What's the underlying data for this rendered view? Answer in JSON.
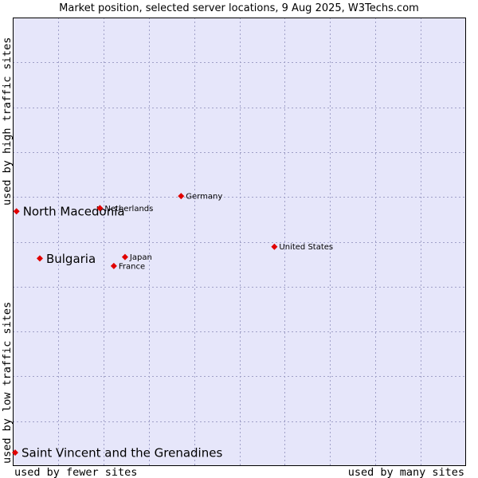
{
  "chart_data": {
    "type": "scatter",
    "title": "Market position, selected server locations, 9 Aug 2025, W3Techs.com",
    "xlabel_left": "used by fewer sites",
    "xlabel_right": "used by many sites",
    "ylabel_bottom": "used by low traffic sites",
    "ylabel_top": "used by high traffic sites",
    "xlim": [
      0,
      100
    ],
    "ylim": [
      0,
      100
    ],
    "grid": true,
    "colors": {
      "plot_bg": "#e6e6fa",
      "grid": "#a0a0c8",
      "point": "#e00000",
      "border": "#000000"
    },
    "points": [
      {
        "label": "North Macedonia",
        "x": 0.3,
        "y": 56.8,
        "size": "large"
      },
      {
        "label": "Bulgaria",
        "x": 5.5,
        "y": 46.3,
        "size": "large"
      },
      {
        "label": "Saint Vincent and the Grenadines",
        "x": 0.0,
        "y": 3.0,
        "size": "large"
      },
      {
        "label": "Germany",
        "x": 37.0,
        "y": 60.2,
        "size": "small"
      },
      {
        "label": "Netherlands",
        "x": 18.9,
        "y": 57.5,
        "size": "small"
      },
      {
        "label": "United States",
        "x": 57.8,
        "y": 48.9,
        "size": "small"
      },
      {
        "label": "Japan",
        "x": 24.5,
        "y": 46.6,
        "size": "small"
      },
      {
        "label": "France",
        "x": 22.0,
        "y": 44.6,
        "size": "small"
      }
    ]
  }
}
